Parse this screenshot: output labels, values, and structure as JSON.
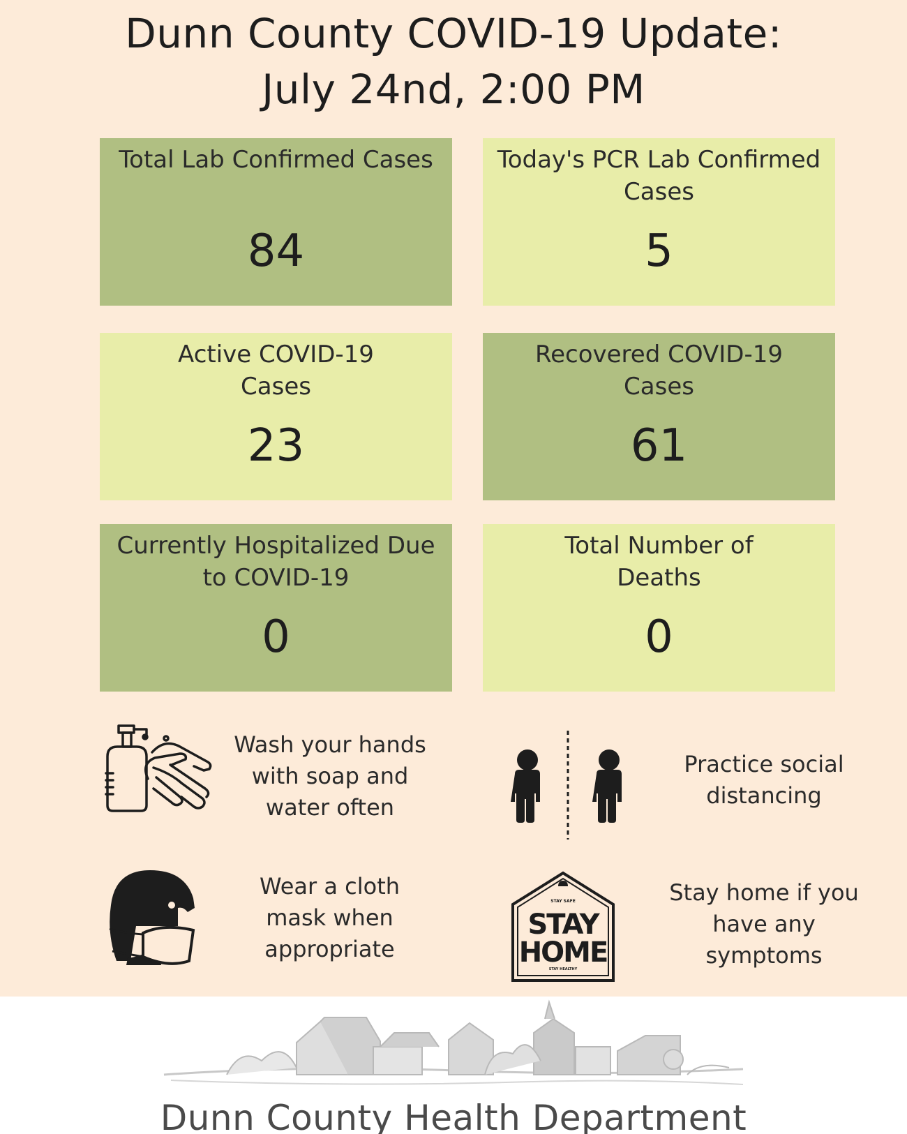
{
  "header": {
    "title_line1": "Dunn County COVID-19 Update:",
    "title_line2": "July 24nd, 2:00 PM"
  },
  "stats": [
    {
      "label": "Total Lab Confirmed Cases",
      "value": "84"
    },
    {
      "label": "Today's PCR Lab Confirmed Cases",
      "value": "5"
    },
    {
      "label": "Active COVID-19 Cases",
      "value": "23"
    },
    {
      "label": "Recovered COVID-19 Cases",
      "value": "61"
    },
    {
      "label": "Currently Hospitalized Due to COVID-19",
      "value": "0"
    },
    {
      "label": "Total Number of Deaths",
      "value": "0"
    }
  ],
  "tips": [
    {
      "icon": "hand-washing-icon",
      "text": "Wash your hands with soap and water often"
    },
    {
      "icon": "social-distancing-icon",
      "text": "Practice social distancing"
    },
    {
      "icon": "face-mask-icon",
      "text": "Wear a cloth mask when appropriate"
    },
    {
      "icon": "stay-home-icon",
      "text": "Stay home if you have any symptoms"
    }
  ],
  "stay_home_sign": {
    "top": "STAY SAFE",
    "main1": "STAY",
    "main2": "HOME",
    "bottom": "STAY HEALTHY"
  },
  "footer": {
    "name": "Dunn County Health Department"
  },
  "colors": {
    "background": "#fdebd9",
    "box_dark": "#b0bf82",
    "box_light": "#e8eda9"
  }
}
